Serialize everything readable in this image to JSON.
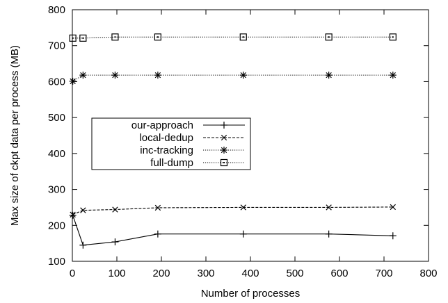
{
  "chart_data": {
    "type": "line",
    "title": "",
    "xlabel": "Number of processes",
    "ylabel": "Max size of ckpt data per process (MB)",
    "xlim": [
      0,
      800
    ],
    "ylim": [
      100,
      800
    ],
    "xticks": [
      0,
      100,
      200,
      300,
      400,
      500,
      600,
      700,
      800
    ],
    "yticks": [
      100,
      200,
      300,
      400,
      500,
      600,
      700,
      800
    ],
    "grid": false,
    "legend_position": "center-left",
    "series": [
      {
        "name": "our-approach",
        "marker": "plus",
        "line_style": "solid",
        "x": [
          1,
          24,
          96,
          192,
          384,
          576,
          720
        ],
        "y": [
          228,
          145,
          154,
          176,
          176,
          176,
          171
        ]
      },
      {
        "name": "local-dedup",
        "marker": "cross",
        "line_style": "dashed",
        "x": [
          1,
          24,
          96,
          192,
          384,
          576,
          720
        ],
        "y": [
          230,
          242,
          244,
          249,
          250,
          250,
          251
        ]
      },
      {
        "name": "inc-tracking",
        "marker": "star",
        "line_style": "dotted",
        "x": [
          1,
          24,
          96,
          192,
          384,
          576,
          720
        ],
        "y": [
          601,
          618,
          618,
          618,
          618,
          618,
          618
        ]
      },
      {
        "name": "full-dump",
        "marker": "square",
        "line_style": "dotted",
        "x": [
          1,
          24,
          96,
          192,
          384,
          576,
          720
        ],
        "y": [
          721,
          721,
          724,
          724,
          724,
          724,
          724
        ]
      }
    ]
  }
}
